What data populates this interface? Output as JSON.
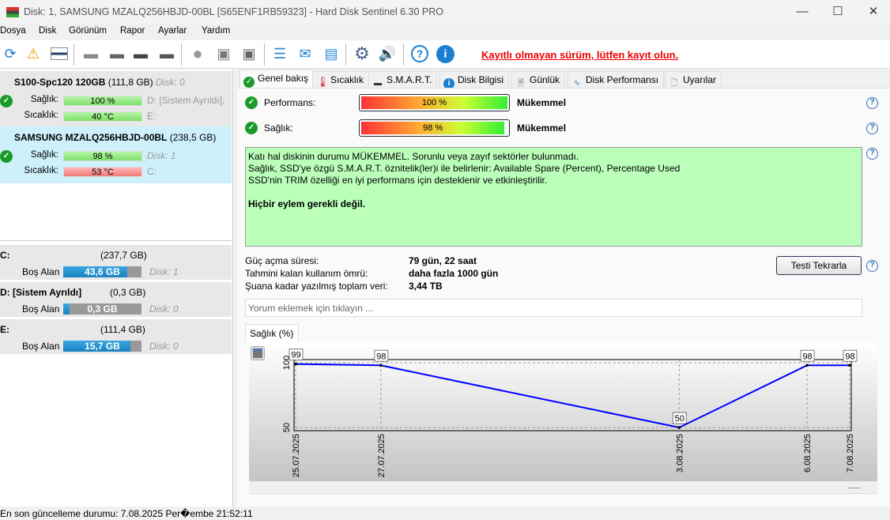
{
  "window": {
    "title": "Disk: 1, SAMSUNG MZALQ256HBJD-00BL [S65ENF1RB59323]  -  Hard Disk Sentinel 6.30 PRO"
  },
  "menu": [
    "Dosya",
    "Disk",
    "Görünüm",
    "Rapor",
    "Ayarlar",
    "Yardım"
  ],
  "toolbar": {
    "icons": [
      "refresh-icon",
      "refresh-warning-icon",
      "disk-list-icon",
      "disk-icon",
      "disk-clock-icon",
      "disk-check-icon",
      "disk-search-icon",
      "disk-surface-icon",
      "disk-test-icon",
      "disk-server-icon",
      "report-icon",
      "mail-icon",
      "network-icon",
      "settings-icon",
      "sound-icon",
      "help-icon",
      "info-icon"
    ],
    "register_link": "Kayıtlı olmayan sürüm, lütfen kayıt olun."
  },
  "disks": [
    {
      "name": "S100-Spc120 120GB",
      "size": "(111,8 GB)",
      "disk": "Disk: 0",
      "health_label": "Sağlık:",
      "health": "100 %",
      "temp_label": "Sıcaklık:",
      "temp": "40 °C",
      "drives1": "D: [Sistem Ayrıldı],",
      "drives2": "E:",
      "temp_status": "ok"
    },
    {
      "name": "SAMSUNG MZALQ256HBJD-00BL",
      "size": "(238,5 GB)",
      "disk": "Disk: 1",
      "health_label": "Sağlık:",
      "health": "98 %",
      "temp_label": "Sıcaklık:",
      "temp": "53 °C",
      "drives1": "Disk: 1",
      "drives2": "C:",
      "temp_status": "hot",
      "selected": true
    }
  ],
  "partitions": [
    {
      "name": "C:",
      "size": "(237,7 GB)",
      "free_label": "Boş Alan",
      "free": "43,6 GB",
      "free_pct": 82,
      "disk": "Disk: 1"
    },
    {
      "name": "D: [Sistem Ayrıldı]",
      "size": "(0,3 GB)",
      "free_label": "Boş Alan",
      "free": "0,3 GB",
      "free_pct": 8,
      "disk": "Disk: 0"
    },
    {
      "name": "E:",
      "size": "(111,4 GB)",
      "free_label": "Boş Alan",
      "free": "15,7 GB",
      "free_pct": 86,
      "disk": "Disk: 0"
    }
  ],
  "tabs": [
    "Genel bakış",
    "Sıcaklık",
    "S.M.A.R.T.",
    "Disk Bilgisi",
    "Günlük",
    "Disk Performansı",
    "Uyarılar"
  ],
  "overview": {
    "performance_label": "Performans:",
    "performance": "100 %",
    "performance_pct": 100,
    "performance_rating": "Mükemmel",
    "health_label": "Sağlık:",
    "health": "98 %",
    "health_pct": 98,
    "health_rating": "Mükemmel",
    "message": [
      "Katı hal diskinin durumu MÜKEMMEL. Sorunlu veya zayıf sektörler bulunmadı.",
      "Sağlık, SSD'ye özgü S.M.A.R.T. öznitelik(ler)i ile belirlenir:  Available Spare (Percent), Percentage Used",
      "SSD'nin TRIM özelliği en iyi performans için desteklenir ve etkinleştirilir."
    ],
    "action": "Hiçbir eylem gerekli değil.",
    "power_on_label": "Güç açma süresi:",
    "power_on": "79 gün, 22 saat",
    "remaining_label": "Tahmini kalan kullanım ömrü:",
    "remaining": "daha fazla 1000 gün",
    "written_label": "Şuana kadar yazılmış toplam veri:",
    "written": "3,44 TB",
    "retest": "Testi Tekrarla",
    "comment_placeholder": "Yorum eklemek için tıklayın ...",
    "chart_tab": "Sağlık (%)"
  },
  "chart_data": {
    "type": "line",
    "x": [
      "25.07.2025",
      "27.07.2025",
      "3.08.2025",
      "6.08.2025",
      "7.08.2025"
    ],
    "values": [
      99,
      98,
      50,
      98,
      98
    ],
    "ylim": [
      50,
      100
    ],
    "yticks": [
      "50",
      "100"
    ],
    "line_color": "#0000ff",
    "grid": true
  },
  "status": "En son güncelleme durumu: 7.08.2025 Per�embe 21:52:11"
}
